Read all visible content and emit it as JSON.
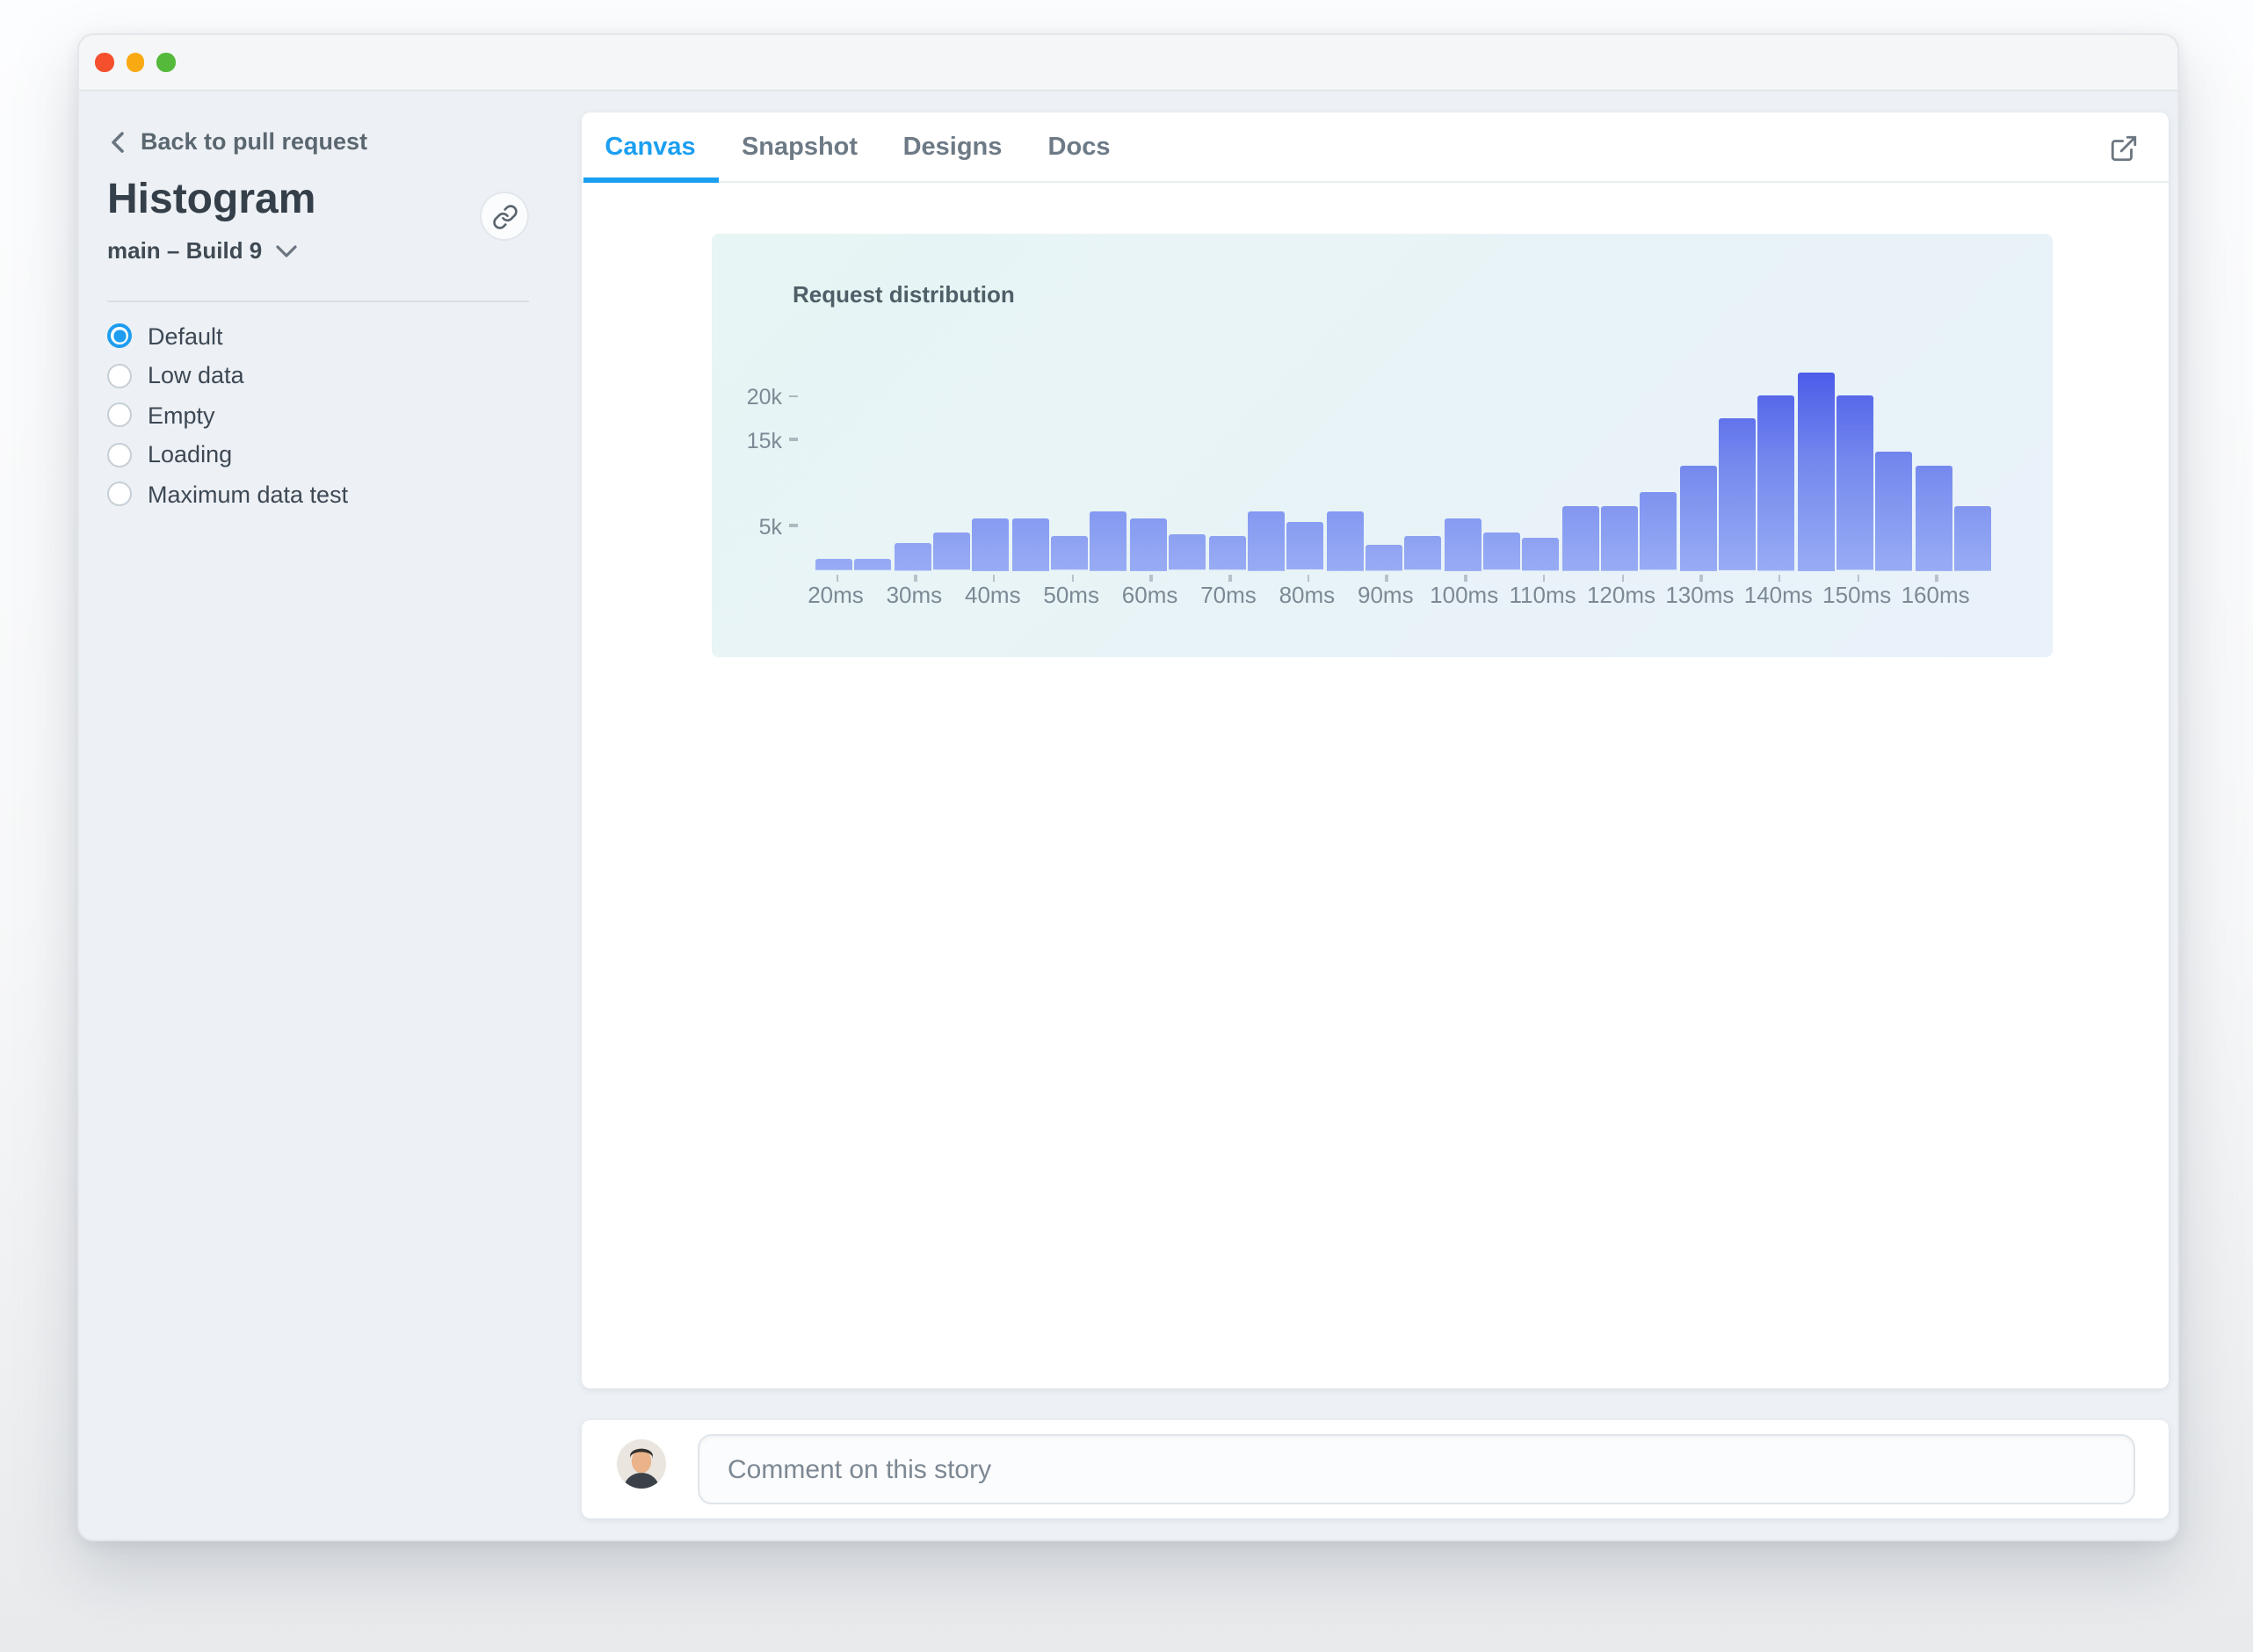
{
  "window": {
    "traffic_light_colors": [
      "#f4502e",
      "#f9a912",
      "#55b93c"
    ]
  },
  "sidebar": {
    "back_label": "Back to pull request",
    "component_title": "Histogram",
    "branch_build_label": "main – Build 9",
    "stories": [
      {
        "label": "Default",
        "selected": true
      },
      {
        "label": "Low data",
        "selected": false
      },
      {
        "label": "Empty",
        "selected": false
      },
      {
        "label": "Loading",
        "selected": false
      },
      {
        "label": "Maximum data test",
        "selected": false
      }
    ]
  },
  "main": {
    "tabs": [
      {
        "label": "Canvas",
        "active": true
      },
      {
        "label": "Snapshot",
        "active": false
      },
      {
        "label": "Designs",
        "active": false
      },
      {
        "label": "Docs",
        "active": false
      }
    ]
  },
  "chart_data": {
    "type": "bar",
    "title": "Request distribution",
    "categories": [
      "20ms",
      "25ms",
      "30ms",
      "35ms",
      "40ms",
      "45ms",
      "50ms",
      "55ms",
      "60ms",
      "65ms",
      "70ms",
      "75ms",
      "80ms",
      "85ms",
      "90ms",
      "95ms",
      "100ms",
      "105ms",
      "110ms",
      "115ms",
      "120ms",
      "125ms",
      "130ms",
      "135ms",
      "140ms",
      "145ms",
      "150ms",
      "155ms",
      "160ms",
      "165ms"
    ],
    "values": [
      1300,
      1300,
      3200,
      4300,
      6100,
      6100,
      3900,
      6900,
      6100,
      4100,
      3900,
      6900,
      5500,
      6900,
      3000,
      3900,
      6100,
      4300,
      3800,
      7500,
      7500,
      9000,
      12200,
      17600,
      20300,
      23000,
      20200,
      13800,
      12200,
      7500
    ],
    "x_tick_labels": [
      "20ms",
      "30ms",
      "40ms",
      "50ms",
      "60ms",
      "70ms",
      "80ms",
      "90ms",
      "100ms",
      "110ms",
      "120ms",
      "130ms",
      "140ms",
      "150ms",
      "160ms"
    ],
    "y_ticks": [
      {
        "label": "20k",
        "value": 20000
      },
      {
        "label": "15k",
        "value": 15000
      },
      {
        "label": "5k",
        "value": 5000
      }
    ],
    "ylim": [
      0,
      23000
    ],
    "xlabel": "",
    "ylabel": "",
    "grid": false,
    "legend": false
  },
  "comment": {
    "placeholder": "Comment on this story"
  },
  "colors": {
    "accent": "#1b9ff1",
    "radio_selected": "#1e9df0",
    "bar_gradient_top": "#4d5ce9",
    "bar_gradient_bottom": "#98acf4",
    "chart_bg_from": "#e7f5f4",
    "chart_bg_to": "#e9f1fa"
  }
}
